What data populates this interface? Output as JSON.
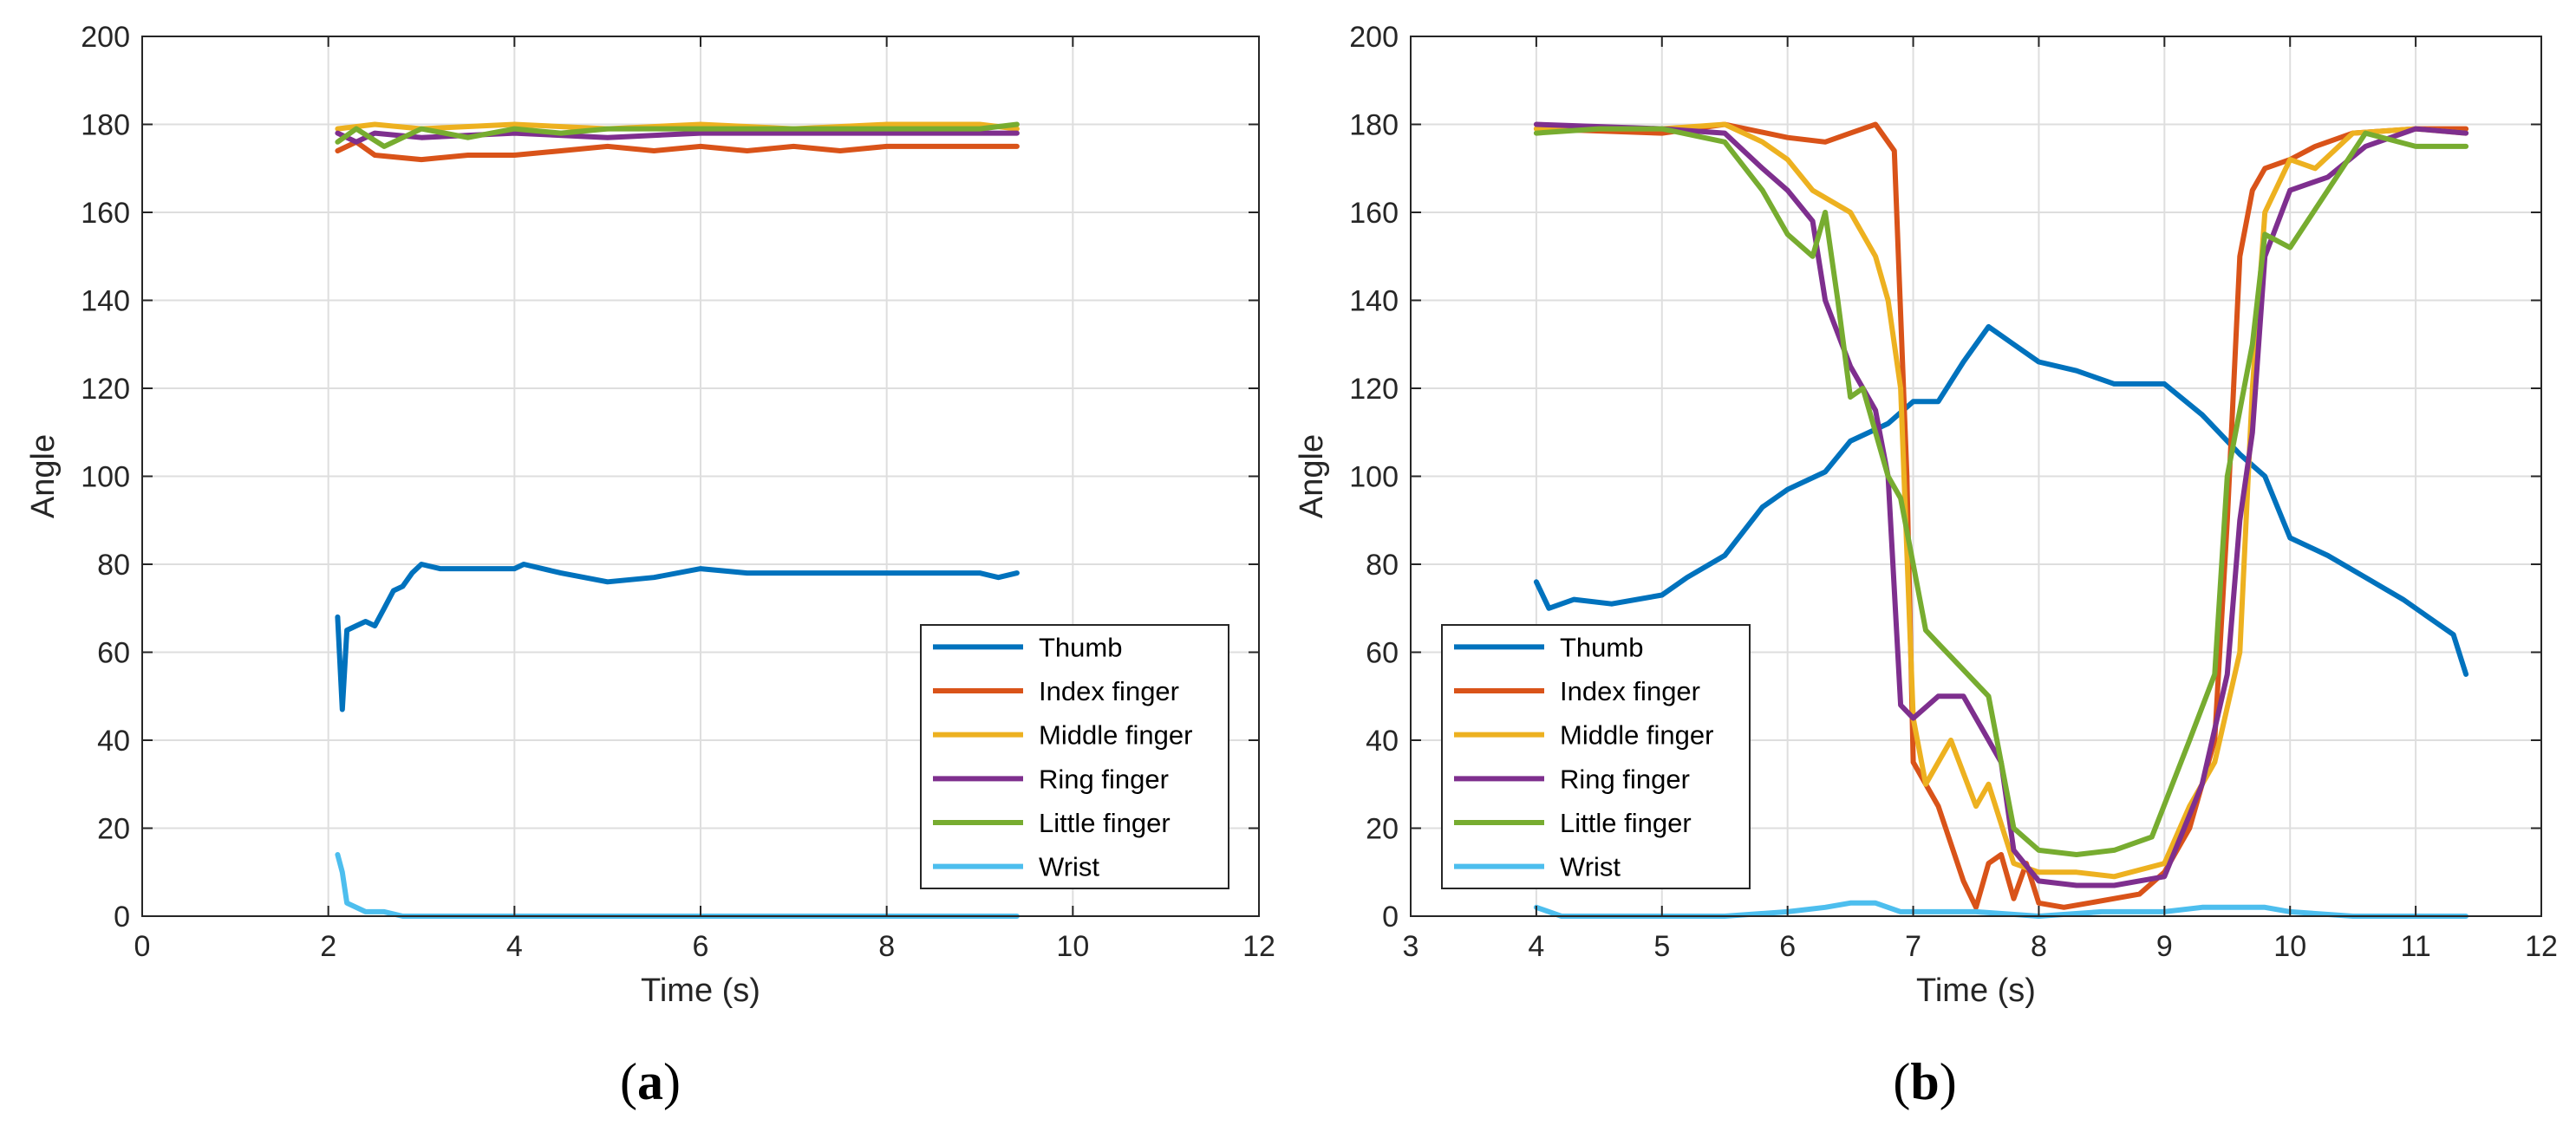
{
  "chart_data": [
    {
      "type": "line",
      "panel_label": {
        "open": "(",
        "letter": "a",
        "close": ")"
      },
      "xlabel": "Time (s)",
      "ylabel": "Angle",
      "xlim": [
        0,
        12
      ],
      "ylim": [
        0,
        200
      ],
      "xticks": [
        "0",
        "2",
        "4",
        "6",
        "8",
        "10",
        "12"
      ],
      "yticks": [
        "0",
        "20",
        "40",
        "60",
        "80",
        "100",
        "120",
        "140",
        "160",
        "180",
        "200"
      ],
      "grid": true,
      "legend_position": "lower-right",
      "series": [
        {
          "name": "Thumb",
          "color": "#0072BD",
          "x": [
            2.1,
            2.15,
            2.2,
            2.3,
            2.4,
            2.5,
            2.6,
            2.7,
            2.8,
            2.9,
            3.0,
            3.2,
            3.5,
            4.0,
            4.1,
            4.5,
            5.0,
            5.5,
            6.0,
            6.5,
            7.0,
            7.5,
            8.0,
            8.5,
            9.0,
            9.2,
            9.4
          ],
          "y": [
            68,
            47,
            65,
            66,
            67,
            66,
            70,
            74,
            75,
            78,
            80,
            79,
            79,
            79,
            80,
            78,
            76,
            77,
            79,
            78,
            78,
            78,
            78,
            78,
            78,
            77,
            78
          ]
        },
        {
          "name": "Index finger",
          "color": "#D95319",
          "x": [
            2.1,
            2.3,
            2.5,
            3.0,
            3.5,
            4.0,
            4.5,
            5.0,
            5.5,
            6.0,
            6.5,
            7.0,
            7.5,
            8.0,
            8.5,
            9.0,
            9.4
          ],
          "y": [
            174,
            176,
            173,
            172,
            173,
            173,
            174,
            175,
            174,
            175,
            174,
            175,
            174,
            175,
            175,
            175,
            175
          ]
        },
        {
          "name": "Middle finger",
          "color": "#EDB120",
          "x": [
            2.1,
            2.5,
            3.0,
            4.0,
            5.0,
            6.0,
            7.0,
            8.0,
            9.0,
            9.4
          ],
          "y": [
            179,
            180,
            179,
            180,
            179,
            180,
            179,
            180,
            180,
            179
          ]
        },
        {
          "name": "Ring finger",
          "color": "#7E2F8E",
          "x": [
            2.1,
            2.3,
            2.5,
            3.0,
            4.0,
            5.0,
            6.0,
            7.0,
            8.0,
            9.0,
            9.4
          ],
          "y": [
            178,
            176,
            178,
            177,
            178,
            177,
            178,
            178,
            178,
            178,
            178
          ]
        },
        {
          "name": "Little finger",
          "color": "#77AC30",
          "x": [
            2.1,
            2.3,
            2.6,
            3.0,
            3.5,
            4.0,
            4.5,
            5.0,
            6.0,
            7.0,
            8.0,
            9.0,
            9.4
          ],
          "y": [
            176,
            179,
            175,
            179,
            177,
            179,
            178,
            179,
            179,
            179,
            179,
            179,
            180
          ]
        },
        {
          "name": "Wrist",
          "color": "#4DBEEE",
          "x": [
            2.1,
            2.15,
            2.2,
            2.4,
            2.6,
            2.8,
            3.0,
            4.0,
            5.0,
            6.0,
            7.0,
            8.0,
            9.0,
            9.4
          ],
          "y": [
            14,
            10,
            3,
            1,
            1,
            0,
            0,
            0,
            0,
            0,
            0,
            0,
            0,
            0
          ]
        }
      ]
    },
    {
      "type": "line",
      "panel_label": {
        "open": "(",
        "letter": "b",
        "close": ")"
      },
      "xlabel": "Time (s)",
      "ylabel": "Angle",
      "xlim": [
        3,
        12
      ],
      "ylim": [
        0,
        200
      ],
      "xticks": [
        "3",
        "4",
        "5",
        "6",
        "7",
        "8",
        "9",
        "10",
        "11",
        "12"
      ],
      "yticks": [
        "0",
        "20",
        "40",
        "60",
        "80",
        "100",
        "120",
        "140",
        "160",
        "180",
        "200"
      ],
      "grid": true,
      "legend_position": "lower-left",
      "series": [
        {
          "name": "Thumb",
          "color": "#0072BD",
          "x": [
            4.0,
            4.1,
            4.3,
            4.6,
            5.0,
            5.2,
            5.5,
            5.8,
            6.0,
            6.3,
            6.5,
            6.8,
            7.0,
            7.2,
            7.4,
            7.6,
            7.8,
            8.0,
            8.3,
            8.6,
            9.0,
            9.3,
            9.6,
            9.8,
            10.0,
            10.3,
            10.6,
            10.9,
            11.1,
            11.3,
            11.4
          ],
          "y": [
            76,
            70,
            72,
            71,
            73,
            77,
            82,
            93,
            97,
            101,
            108,
            112,
            117,
            117,
            126,
            134,
            130,
            126,
            124,
            121,
            121,
            114,
            105,
            100,
            86,
            82,
            77,
            72,
            68,
            64,
            55
          ]
        },
        {
          "name": "Index finger",
          "color": "#D95319",
          "x": [
            4.0,
            5.0,
            5.5,
            6.0,
            6.3,
            6.5,
            6.7,
            6.85,
            6.95,
            7.0,
            7.2,
            7.4,
            7.5,
            7.6,
            7.7,
            7.8,
            7.9,
            8.0,
            8.2,
            8.4,
            8.6,
            8.8,
            9.0,
            9.2,
            9.4,
            9.5,
            9.6,
            9.7,
            9.8,
            10.0,
            10.2,
            10.5,
            11.0,
            11.4
          ],
          "y": [
            179,
            178,
            180,
            177,
            176,
            178,
            180,
            174,
            100,
            35,
            25,
            8,
            2,
            12,
            14,
            4,
            12,
            3,
            2,
            3,
            4,
            5,
            10,
            20,
            40,
            90,
            150,
            165,
            170,
            172,
            175,
            178,
            179,
            179
          ]
        },
        {
          "name": "Middle finger",
          "color": "#EDB120",
          "x": [
            4.0,
            5.0,
            5.5,
            5.8,
            6.0,
            6.2,
            6.5,
            6.7,
            6.8,
            6.9,
            7.0,
            7.1,
            7.3,
            7.5,
            7.6,
            7.8,
            8.0,
            8.3,
            8.6,
            9.0,
            9.2,
            9.4,
            9.6,
            9.7,
            9.8,
            10.0,
            10.2,
            10.5,
            11.0,
            11.4
          ],
          "y": [
            179,
            179,
            180,
            176,
            172,
            165,
            160,
            150,
            140,
            120,
            45,
            30,
            40,
            25,
            30,
            12,
            10,
            10,
            9,
            12,
            25,
            35,
            60,
            120,
            160,
            172,
            170,
            178,
            179,
            178
          ]
        },
        {
          "name": "Ring finger",
          "color": "#7E2F8E",
          "x": [
            4.0,
            5.0,
            5.5,
            5.8,
            6.0,
            6.2,
            6.3,
            6.5,
            6.7,
            6.8,
            6.9,
            7.0,
            7.2,
            7.4,
            7.5,
            7.7,
            7.8,
            8.0,
            8.3,
            8.6,
            9.0,
            9.3,
            9.5,
            9.6,
            9.7,
            9.8,
            10.0,
            10.3,
            10.6,
            11.0,
            11.4
          ],
          "y": [
            180,
            179,
            178,
            170,
            165,
            158,
            140,
            125,
            115,
            100,
            48,
            45,
            50,
            50,
            45,
            35,
            15,
            8,
            7,
            7,
            9,
            30,
            55,
            90,
            110,
            150,
            165,
            168,
            175,
            179,
            178
          ]
        },
        {
          "name": "Little finger",
          "color": "#77AC30",
          "x": [
            4.0,
            4.5,
            5.0,
            5.5,
            5.8,
            6.0,
            6.2,
            6.3,
            6.4,
            6.5,
            6.6,
            6.8,
            6.9,
            7.0,
            7.1,
            7.2,
            7.4,
            7.6,
            7.8,
            8.0,
            8.3,
            8.6,
            8.9,
            9.2,
            9.4,
            9.5,
            9.7,
            9.8,
            10.0,
            10.3,
            10.6,
            11.0,
            11.4
          ],
          "y": [
            178,
            179,
            179,
            176,
            165,
            155,
            150,
            160,
            140,
            118,
            120,
            100,
            95,
            80,
            65,
            62,
            56,
            50,
            20,
            15,
            14,
            15,
            18,
            40,
            55,
            100,
            130,
            155,
            152,
            165,
            178,
            175,
            175
          ]
        },
        {
          "name": "Wrist",
          "color": "#4DBEEE",
          "x": [
            4.0,
            4.2,
            4.5,
            5.0,
            5.5,
            6.0,
            6.3,
            6.5,
            6.7,
            6.9,
            7.0,
            7.5,
            8.0,
            8.5,
            9.0,
            9.3,
            9.5,
            9.8,
            10.0,
            10.5,
            11.0,
            11.4
          ],
          "y": [
            2,
            0,
            0,
            0,
            0,
            1,
            2,
            3,
            3,
            1,
            1,
            1,
            0,
            1,
            1,
            2,
            2,
            2,
            1,
            0,
            0,
            0
          ]
        }
      ]
    }
  ]
}
